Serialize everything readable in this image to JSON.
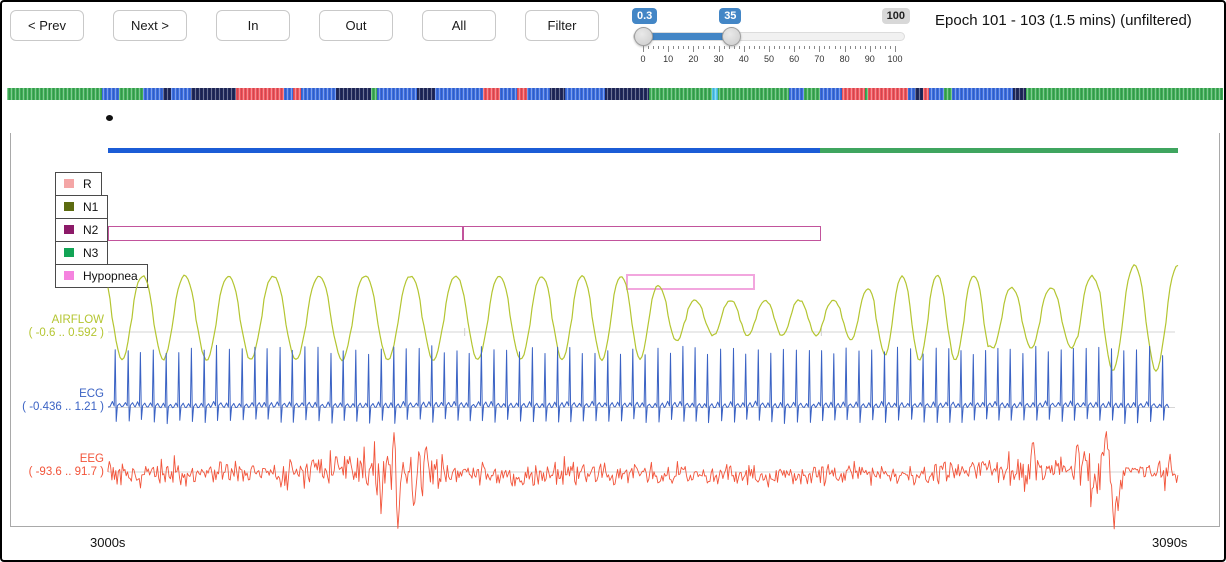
{
  "toolbar": {
    "buttons": [
      {
        "id": "prev",
        "label": "< Prev"
      },
      {
        "id": "next",
        "label": "Next >"
      },
      {
        "id": "zoom-in",
        "label": "In"
      },
      {
        "id": "zoom-out",
        "label": "Out"
      },
      {
        "id": "all",
        "label": "All"
      },
      {
        "id": "filter",
        "label": "Filter"
      }
    ],
    "slider": {
      "low_label": "0.3",
      "high_label": "35",
      "max_label": "100",
      "low_value": 0.3,
      "high_value": 35,
      "min": 0,
      "max": 100,
      "ticks": [
        0,
        10,
        20,
        30,
        40,
        50,
        60,
        70,
        80,
        90,
        100
      ],
      "accent": "#4386c6"
    },
    "title": "Epoch 101 - 103 (1.5 mins) (unfiltered)"
  },
  "stage_colors": {
    "g": "#3fae57",
    "b": "#3b6de0",
    "n": "#20295c",
    "r": "#f0545c",
    "c": "#54c8f0"
  },
  "overview_strip": {
    "segments": [
      [
        "g",
        95
      ],
      [
        "b",
        17
      ],
      [
        "g",
        25
      ],
      [
        "b",
        20
      ],
      [
        "n",
        8
      ],
      [
        "b",
        20
      ],
      [
        "n",
        45
      ],
      [
        "r",
        48
      ],
      [
        "b",
        9
      ],
      [
        "r",
        8
      ],
      [
        "b",
        35
      ],
      [
        "n",
        35
      ],
      [
        "g",
        7
      ],
      [
        "b",
        40
      ],
      [
        "n",
        18
      ],
      [
        "b",
        48
      ],
      [
        "r",
        17
      ],
      [
        "b",
        17
      ],
      [
        "r",
        10
      ],
      [
        "b",
        23
      ],
      [
        "n",
        15
      ],
      [
        "b",
        40
      ],
      [
        "n",
        45
      ],
      [
        "g",
        63
      ],
      [
        "c",
        6
      ],
      [
        "g",
        71
      ],
      [
        "b",
        15
      ],
      [
        "g",
        16
      ],
      [
        "b",
        22
      ],
      [
        "r",
        24
      ],
      [
        "g",
        3
      ],
      [
        "r",
        40
      ],
      [
        "b",
        7
      ],
      [
        "n",
        8
      ],
      [
        "r",
        6
      ],
      [
        "b",
        15
      ],
      [
        "g",
        8
      ],
      [
        "b",
        61
      ],
      [
        "n",
        13
      ],
      [
        "g",
        198
      ]
    ]
  },
  "chart": {
    "x_start_label": "3000s",
    "x_end_label": "3090s",
    "stage_bar": [
      {
        "color": "#1b5cd6",
        "start": 0,
        "end": 0.6655
      },
      {
        "color": "#3fa55f",
        "start": 0.6655,
        "end": 1
      }
    ],
    "legend": [
      {
        "label": "R",
        "color": "#f4a6a6"
      },
      {
        "label": "N1",
        "color": "#5c6b10"
      },
      {
        "label": "N2",
        "color": "#8c1a68"
      },
      {
        "label": "N3",
        "color": "#12a455"
      },
      {
        "label": "Hypopnea",
        "color": "#f583df"
      }
    ],
    "annotations": {
      "n2_boxes": [
        {
          "label": "N2",
          "start": 0.0,
          "end": 0.332
        },
        {
          "label": "N2",
          "start": 0.332,
          "end": 0.666
        }
      ],
      "hypopnea_box": {
        "label": "Hypopnea",
        "start": 0.484,
        "end": 0.605
      }
    },
    "channels": [
      {
        "name": "AIRFLOW",
        "range": "( -0.6 .. 0.592 )",
        "color": "#b4c531"
      },
      {
        "name": "ECG",
        "range": "( -0.436 .. 1.21 )",
        "color": "#3a62c4"
      },
      {
        "name": "EEG",
        "range": "( -93.6 .. 91.7 )",
        "color": "#f2543a"
      }
    ]
  }
}
